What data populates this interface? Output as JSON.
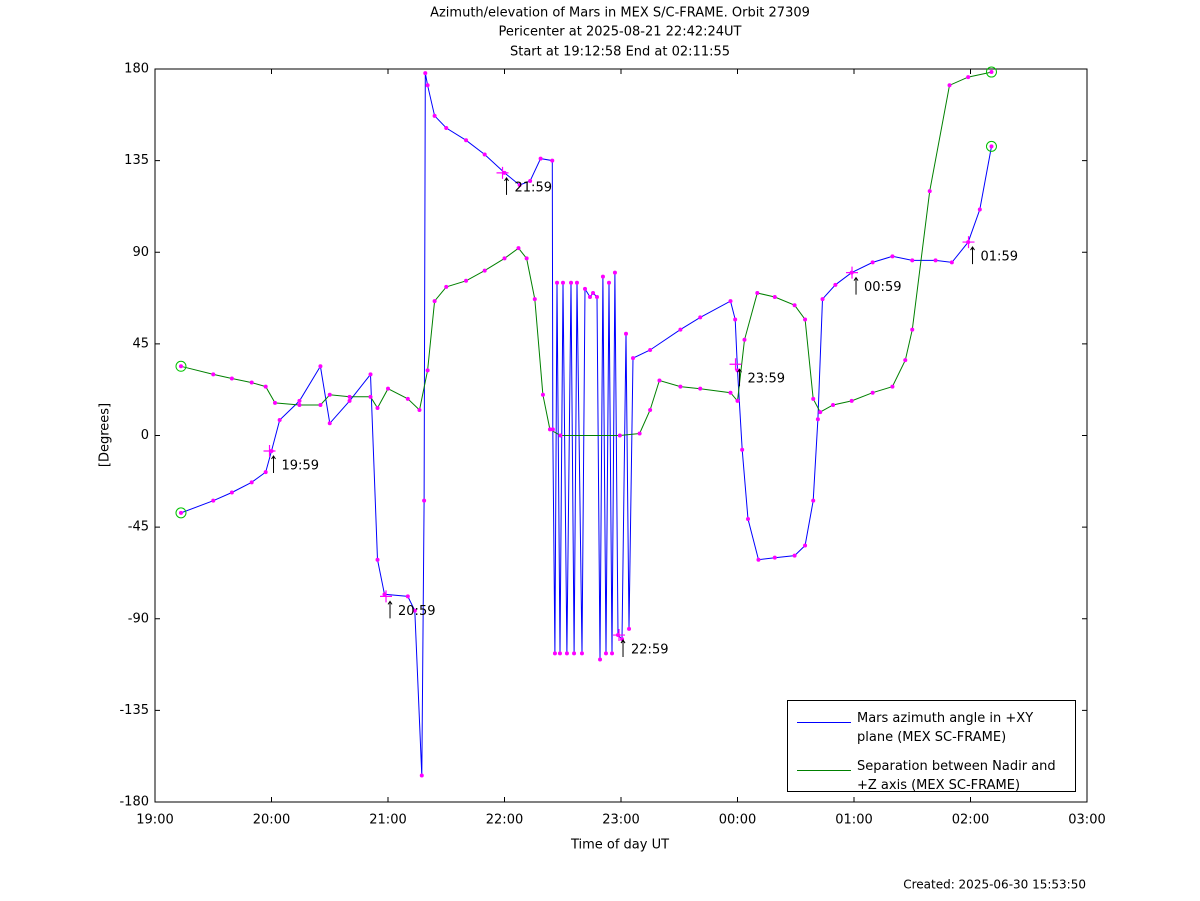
{
  "chart_data": {
    "type": "line",
    "title": "Azimuth/elevation of Mars in MEX S/C-FRAME.  Orbit 27309",
    "subtitle": "Pericenter at 2025-08-21 22:42:24UT",
    "subtitle2": "Start at 19:12:58 End at 02:11:55",
    "xlabel": "Time of day UT",
    "ylabel": "[Degrees]",
    "footer": "Created: 2025-06-30 15:53:50",
    "xlim": [
      19,
      27
    ],
    "xticks": [
      {
        "value": 19,
        "label": "19:00"
      },
      {
        "value": 20,
        "label": "20:00"
      },
      {
        "value": 21,
        "label": "21:00"
      },
      {
        "value": 22,
        "label": "22:00"
      },
      {
        "value": 23,
        "label": "23:00"
      },
      {
        "value": 24,
        "label": "00:00"
      },
      {
        "value": 25,
        "label": "01:00"
      },
      {
        "value": 26,
        "label": "02:00"
      },
      {
        "value": 27,
        "label": "03:00"
      }
    ],
    "ylim": [
      -180,
      180
    ],
    "yticks": [
      -180,
      -135,
      -90,
      -45,
      0,
      45,
      90,
      135,
      180
    ],
    "legend": "lower right",
    "marker_color": "#ff00ff",
    "series": [
      {
        "name": "Mars azimuth angle in +XY plane (MEX SC-FRAME)",
        "color": "#0000ff",
        "x": [
          19.223,
          19.5,
          19.66,
          19.83,
          19.95,
          20.0,
          20.07,
          20.24,
          20.42,
          20.5,
          20.67,
          20.85,
          20.91,
          20.97,
          21.17,
          21.23,
          21.29,
          21.31,
          21.32,
          21.34,
          21.4,
          21.5,
          21.67,
          21.83,
          22.0,
          22.13,
          22.22,
          22.31,
          22.41,
          22.415,
          22.433,
          22.451,
          22.476,
          22.502,
          22.536,
          22.571,
          22.597,
          22.622,
          22.665,
          22.691,
          22.734,
          22.76,
          22.794,
          22.82,
          22.845,
          22.871,
          22.897,
          22.923,
          22.948,
          22.974,
          23.009,
          23.043,
          23.069,
          23.103,
          23.25,
          23.51,
          23.68,
          23.94,
          23.98,
          24.0,
          24.04,
          24.09,
          24.18,
          24.32,
          24.49,
          24.58,
          24.65,
          24.69,
          24.73,
          24.84,
          24.98,
          25.16,
          25.33,
          25.5,
          25.7,
          25.84,
          25.98,
          26.08,
          26.18
        ],
        "values": [
          -38,
          -32,
          -28,
          -23,
          -18,
          -7.6,
          7.6,
          17,
          34,
          6,
          17,
          30,
          -61,
          -78,
          -79,
          -86,
          -167,
          -32,
          178,
          172,
          157,
          151,
          145,
          138,
          129,
          123,
          125,
          136,
          135,
          3,
          -107,
          75,
          -107,
          75,
          -107,
          75,
          -107,
          75,
          -107,
          72,
          68,
          70,
          68,
          -110,
          78,
          -107,
          75,
          -107,
          80,
          -98,
          -100,
          50,
          -95,
          38,
          42,
          52,
          58,
          66,
          57,
          32,
          -7,
          -41,
          -61,
          -60,
          -59,
          -54,
          -32,
          8,
          67,
          74,
          80,
          85,
          88,
          86,
          86,
          85,
          95,
          111,
          142
        ]
      },
      {
        "name": "Separation between Nadir and +Z axis (MEX SC-FRAME)",
        "color": "#008000",
        "x": [
          19.223,
          19.5,
          19.66,
          19.83,
          19.95,
          20.03,
          20.24,
          20.42,
          20.5,
          20.67,
          20.85,
          20.91,
          21.0,
          21.17,
          21.27,
          21.34,
          21.4,
          21.5,
          21.67,
          21.83,
          22.0,
          22.12,
          22.19,
          22.26,
          22.33,
          22.39,
          22.48,
          22.99,
          23.16,
          23.25,
          23.33,
          23.51,
          23.68,
          23.94,
          24.0,
          24.06,
          24.17,
          24.32,
          24.49,
          24.58,
          24.65,
          24.71,
          24.82,
          24.98,
          25.16,
          25.33,
          25.44,
          25.5,
          25.65,
          25.82,
          25.98,
          26.18
        ],
        "values": [
          34,
          30,
          28,
          26,
          24,
          16,
          15,
          15,
          20,
          19,
          19,
          13.5,
          23,
          18,
          12.5,
          32,
          66,
          73,
          76,
          81,
          87,
          92,
          87,
          67,
          20,
          3,
          0,
          0,
          1,
          12.5,
          27,
          24,
          23,
          21,
          17,
          47,
          70,
          68,
          64,
          57,
          18,
          11.5,
          15,
          17,
          21,
          24,
          37,
          52,
          120,
          172,
          176,
          178.5
        ]
      }
    ],
    "annotations": [
      {
        "text": "19:59",
        "x": 19.983,
        "y": -7.6
      },
      {
        "text": "20:59",
        "x": 20.983,
        "y": -79
      },
      {
        "text": "21:59",
        "x": 21.983,
        "y": 129
      },
      {
        "text": "22:59",
        "x": 22.983,
        "y": -98
      },
      {
        "text": "23:59",
        "x": 23.983,
        "y": 35
      },
      {
        "text": "00:59",
        "x": 24.983,
        "y": 80
      },
      {
        "text": "01:59",
        "x": 25.983,
        "y": 95
      }
    ]
  }
}
